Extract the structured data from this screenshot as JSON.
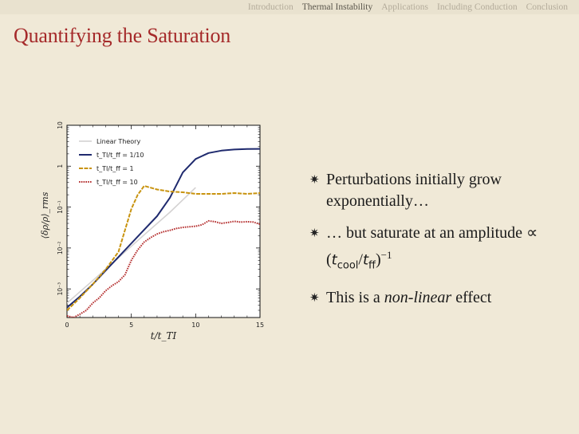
{
  "nav": {
    "items": [
      {
        "label": "Introduction",
        "active": false
      },
      {
        "label": "Thermal Instability",
        "active": true
      },
      {
        "label": "Applications",
        "active": false
      },
      {
        "label": "Including Conduction",
        "active": false
      },
      {
        "label": "Conclusion",
        "active": false
      }
    ]
  },
  "slide": {
    "title": "Quantifying the Saturation"
  },
  "bullets": {
    "b1": "Perturbations initially grow exponentially…",
    "b2_a": "… but saturate at an amplitude ∝ (",
    "b2_t1": "t",
    "b2_s1": "cool",
    "b2_slash": "/",
    "b2_t2": "t",
    "b2_s2": "ff",
    "b2_close": ")",
    "b2_exp": "−1",
    "b3_a": "This is a ",
    "b3_em": "non-linear",
    "b3_b": " effect"
  },
  "chart_data": {
    "type": "line",
    "xlabel": "t/t_TI",
    "ylabel": "⟨δρ/ρ⟩_rms",
    "xlim": [
      0,
      15
    ],
    "ylim": [
      0.0002,
      10
    ],
    "yscale": "log",
    "xticks": [
      "0",
      "5",
      "10",
      "15"
    ],
    "yticks": [
      {
        "value": 10,
        "label": "10"
      },
      {
        "value": 1,
        "label": "1"
      },
      {
        "value": 0.1,
        "label": "10⁻¹"
      },
      {
        "value": 0.01,
        "label": "10⁻²"
      },
      {
        "value": 0.001,
        "label": "10⁻³"
      }
    ],
    "legend_position": "top-left",
    "series": [
      {
        "name": "Linear Theory",
        "color": "#d4d2d2",
        "style": "solid",
        "x": [
          0,
          2,
          4,
          6,
          8,
          10
        ],
        "y": [
          0.00045,
          0.0016,
          0.0058,
          0.021,
          0.075,
          0.3
        ]
      },
      {
        "name": "t_TI/t_ff = 1/10",
        "color": "#1f2a6e",
        "style": "solid",
        "x": [
          0,
          1,
          2,
          3,
          4,
          5,
          6,
          7,
          8,
          9,
          10,
          11,
          12,
          13,
          14,
          15
        ],
        "y": [
          0.00035,
          0.00065,
          0.0013,
          0.0028,
          0.006,
          0.013,
          0.028,
          0.06,
          0.17,
          0.7,
          1.5,
          2.1,
          2.4,
          2.55,
          2.62,
          2.65
        ]
      },
      {
        "name": "t_TI/t_ff = 1",
        "color": "#c8930f",
        "style": "dashed",
        "x": [
          0,
          1,
          2,
          3,
          4,
          5,
          5.5,
          6,
          7,
          8,
          9,
          10,
          11,
          12,
          13,
          14,
          15
        ],
        "y": [
          0.0003,
          0.0006,
          0.0013,
          0.003,
          0.008,
          0.09,
          0.2,
          0.33,
          0.27,
          0.24,
          0.23,
          0.21,
          0.21,
          0.21,
          0.22,
          0.21,
          0.22
        ]
      },
      {
        "name": "t_TI/t_ff = 10",
        "color": "#b53030",
        "style": "dotted",
        "x": [
          0,
          0.5,
          1,
          1.5,
          2,
          2.5,
          3,
          3.5,
          4,
          4.5,
          5,
          5.5,
          6,
          6.5,
          7,
          7.5,
          8,
          8.5,
          9,
          9.5,
          10,
          10.5,
          11,
          11.5,
          12,
          12.5,
          13,
          13.5,
          14,
          14.5,
          15
        ],
        "y": [
          0.00022,
          0.0002,
          0.00024,
          0.0003,
          0.00045,
          0.0006,
          0.0009,
          0.0012,
          0.0015,
          0.0022,
          0.005,
          0.009,
          0.014,
          0.018,
          0.022,
          0.025,
          0.027,
          0.03,
          0.032,
          0.033,
          0.034,
          0.037,
          0.046,
          0.044,
          0.04,
          0.042,
          0.045,
          0.043,
          0.044,
          0.043,
          0.038
        ]
      }
    ]
  }
}
